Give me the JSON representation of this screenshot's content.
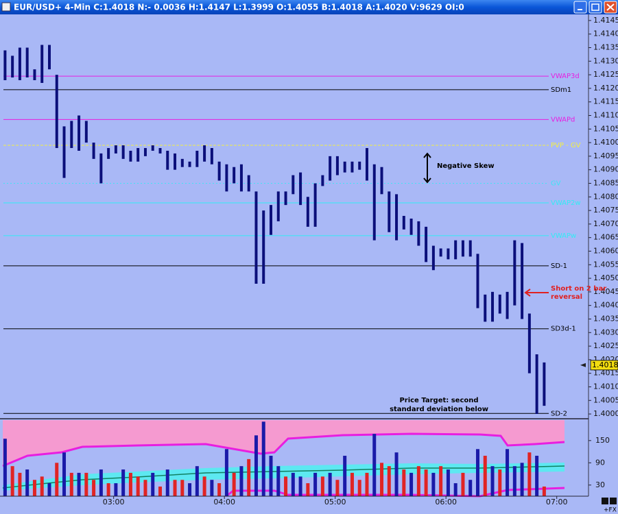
{
  "window": {
    "title": "EUR/USD+ 4-Min C:1.4018 N:- 0.0036 H:1.4147 L:1.3999 O:1.4055 B:1.4018 A:1.4020 V:9629 OI:0",
    "footer_label": "+FX"
  },
  "chart_data": [
    {
      "type": "range",
      "xlim": [
        -0.5,
        79
      ],
      "ylim": [
        1.39985,
        1.41475
      ],
      "color": "#0b0f7a",
      "yticks": [
        1.4145,
        {
          "value": 1.414,
          "label": "1.4140"
        },
        1.4135,
        {
          "value": 1.413,
          "label": "1.4130"
        },
        1.4125,
        {
          "value": 1.412,
          "label": "1.4120"
        },
        1.4115,
        {
          "value": 1.411,
          "label": "1.4110"
        },
        1.4105,
        {
          "value": 1.41,
          "label": "1.4100"
        },
        1.4095,
        {
          "value": 1.409,
          "label": "1.4090"
        },
        1.4085,
        {
          "value": 1.408,
          "label": "1.4080"
        },
        1.4075,
        {
          "value": 1.407,
          "label": "1.4070"
        },
        1.4065,
        {
          "value": 1.406,
          "label": "1.4060"
        },
        1.4055,
        {
          "value": 1.405,
          "label": "1.4050"
        },
        1.4045,
        {
          "value": 1.404,
          "label": "1.4040"
        },
        1.4035,
        {
          "value": 1.403,
          "label": "1.4030"
        },
        1.4025,
        {
          "value": 1.402,
          "label": "1.4020"
        },
        1.4015,
        {
          "value": 1.401,
          "label": "1.4010"
        },
        1.4005,
        {
          "value": 1.4,
          "label": "1.4000"
        }
      ],
      "high": [
        1.4134,
        1.4132,
        1.4135,
        1.4135,
        1.4127,
        1.4136,
        1.4136,
        1.4125,
        1.4106,
        1.4108,
        1.411,
        1.4108,
        1.41,
        1.4096,
        1.4098,
        1.4099,
        1.4099,
        1.4097,
        1.4098,
        1.4098,
        1.4099,
        1.4098,
        1.4097,
        1.4096,
        1.4094,
        1.4093,
        1.4097,
        1.4099,
        1.4098,
        1.4093,
        1.4092,
        1.4091,
        1.4092,
        1.4088,
        1.4082,
        1.4075,
        1.4077,
        1.4082,
        1.4082,
        1.4088,
        1.4089,
        1.408,
        1.4085,
        1.4088,
        1.4095,
        1.4095,
        1.4093,
        1.4093,
        1.4093,
        1.4098,
        1.4092,
        1.4091,
        1.4082,
        1.4081,
        1.4073,
        1.4072,
        1.4071,
        1.4069,
        1.4062,
        1.4061,
        1.4061,
        1.4064,
        1.4064,
        1.4064,
        1.4059,
        1.4044,
        1.4045,
        1.4044,
        1.4045,
        1.4064,
        1.4063,
        1.4037,
        1.4022,
        1.4019
      ],
      "low": [
        1.4123,
        1.4124,
        1.4123,
        1.4124,
        1.4123,
        1.4122,
        1.4127,
        1.4098,
        1.4087,
        1.4098,
        1.4097,
        1.41,
        1.4094,
        1.4085,
        1.4094,
        1.4096,
        1.4094,
        1.4093,
        1.4093,
        1.4095,
        1.4097,
        1.4096,
        1.409,
        1.409,
        1.4091,
        1.4091,
        1.4091,
        1.4093,
        1.4092,
        1.4086,
        1.4082,
        1.4085,
        1.4082,
        1.4082,
        1.4048,
        1.4048,
        1.4066,
        1.4071,
        1.4077,
        1.4081,
        1.4077,
        1.4069,
        1.4069,
        1.4084,
        1.4086,
        1.4088,
        1.4089,
        1.4089,
        1.409,
        1.4086,
        1.4064,
        1.4081,
        1.4067,
        1.4064,
        1.4068,
        1.4066,
        1.4062,
        1.4056,
        1.4053,
        1.4058,
        1.4057,
        1.4057,
        1.4058,
        1.4058,
        1.4039,
        1.4034,
        1.4034,
        1.4037,
        1.4035,
        1.404,
        1.4035,
        1.4015,
        1.4,
        1.4003
      ],
      "levels": [
        {
          "label": "VWAP3d",
          "value": 1.41245,
          "color": "#e81ee0",
          "dash": "none"
        },
        {
          "label": "SDm1",
          "value": 1.41195,
          "color": "#000000",
          "dash": "none"
        },
        {
          "label": "VWAPd",
          "value": 1.41085,
          "color": "#e81ee0",
          "dash": "none"
        },
        {
          "label": "PVP - GV",
          "value": 1.4099,
          "color": "#f4f040",
          "dash": "4 2"
        },
        {
          "label": "GV",
          "value": 1.4085,
          "color": "#40e4f4",
          "dash": "2 3"
        },
        {
          "label": "VWAP2w",
          "value": 1.40778,
          "color": "#30ecf4",
          "dash": "none"
        },
        {
          "label": "VWAPw",
          "value": 1.40657,
          "color": "#30ecf4",
          "dash": "none"
        },
        {
          "label": "SD-1",
          "value": 1.40546,
          "color": "#000000",
          "dash": "none"
        },
        {
          "label": "SD3d-1",
          "value": 1.40314,
          "color": "#000000",
          "dash": "none"
        },
        {
          "label": "SD-2",
          "value": 1.40002,
          "color": "#000000",
          "dash": "none"
        }
      ],
      "last_price": 1.4018,
      "annotations": [
        {
          "text": [
            "Negative Skew"
          ]
        },
        {
          "text": [
            "Short on 2 bar",
            "reversal"
          ]
        },
        {
          "text": [
            "Price Target: second",
            "standard deviation below"
          ]
        }
      ]
    },
    {
      "type": "bar",
      "xlim": [
        -0.5,
        79
      ],
      "ylim": [
        0,
        207
      ],
      "yticks": [
        30,
        90,
        150
      ],
      "xticks": [
        {
          "value": 14.7,
          "label": "03:00"
        },
        {
          "value": 29.7,
          "label": "04:00"
        },
        {
          "value": 44.7,
          "label": "05:00"
        },
        {
          "value": 59.7,
          "label": "06:00"
        },
        {
          "value": 74.7,
          "label": "07:00"
        }
      ],
      "values": [
        155,
        81,
        63,
        72,
        44,
        53,
        35,
        90,
        118,
        63,
        63,
        63,
        44,
        72,
        35,
        35,
        72,
        63,
        53,
        44,
        63,
        26,
        72,
        44,
        44,
        35,
        81,
        53,
        44,
        35,
        127,
        63,
        81,
        100,
        164,
        201,
        109,
        81,
        53,
        63,
        53,
        35,
        63,
        53,
        63,
        44,
        109,
        63,
        44,
        63,
        168,
        90,
        81,
        118,
        72,
        63,
        81,
        72,
        63,
        81,
        72,
        35,
        63,
        44,
        127,
        109,
        81,
        72,
        127,
        81,
        90,
        118,
        109,
        26
      ],
      "colors": [
        "#1a1aa8",
        "#e02424",
        "#e02424",
        "#1a1aa8",
        "#e02424",
        "#e02424",
        "#1a1aa8",
        "#e02424",
        "#1a1aa8",
        "#e02424",
        "#1a1aa8",
        "#e02424",
        "#e02424",
        "#1a1aa8",
        "#e02424",
        "#1a1aa8",
        "#1a1aa8",
        "#e02424",
        "#e02424",
        "#e02424",
        "#1a1aa8",
        "#e02424",
        "#1a1aa8",
        "#e02424",
        "#e02424",
        "#1a1aa8",
        "#1a1aa8",
        "#e02424",
        "#1a1aa8",
        "#e02424",
        "#1a1aa8",
        "#e02424",
        "#1a1aa8",
        "#e02424",
        "#1a1aa8",
        "#1a1aa8",
        "#1a1aa8",
        "#1a1aa8",
        "#e02424",
        "#1a1aa8",
        "#1a1aa8",
        "#e02424",
        "#1a1aa8",
        "#e02424",
        "#1a1aa8",
        "#e02424",
        "#1a1aa8",
        "#e02424",
        "#e02424",
        "#e02424",
        "#1a1aa8",
        "#e02424",
        "#e02424",
        "#1a1aa8",
        "#e02424",
        "#1a1aa8",
        "#e02424",
        "#e02424",
        "#1a1aa8",
        "#e02424",
        "#1a1aa8",
        "#1a1aa8",
        "#e02424",
        "#1a1aa8",
        "#1a1aa8",
        "#e02424",
        "#1a1aa8",
        "#e02424",
        "#1a1aa8",
        "#1a1aa8",
        "#1a1aa8",
        "#e02424",
        "#1a1aa8",
        "#e02424"
      ]
    }
  ]
}
